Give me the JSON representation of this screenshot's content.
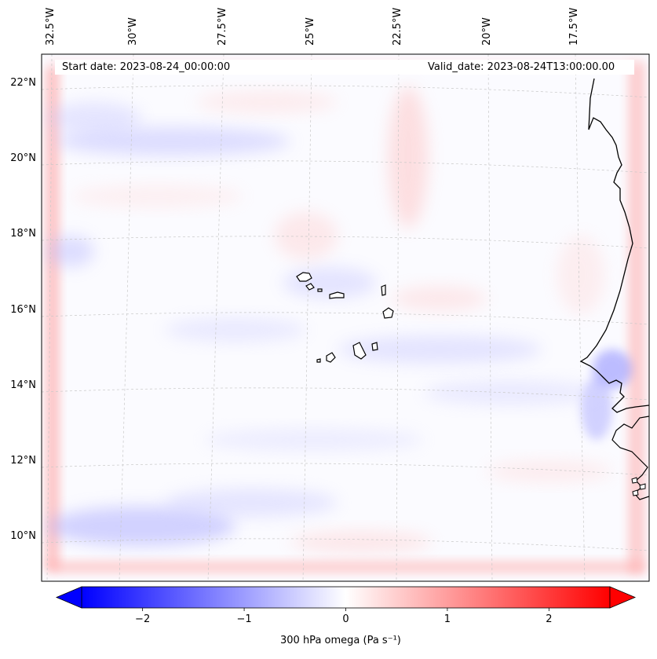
{
  "map": {
    "start_date_label": "Start date: 2023-08-24_00:00:00",
    "valid_date_label": "Valid_date: 2023-08-24T13:00:00.00",
    "lon_labels": [
      "32.5°W",
      "30°W",
      "27.5°W",
      "25°W",
      "22.5°W",
      "20°W",
      "17.5°W"
    ],
    "lat_labels": [
      "22°N",
      "20°N",
      "18°N",
      "16°N",
      "14°N",
      "12°N",
      "10°N"
    ],
    "variable": "300 hPa omega",
    "units": "Pa s⁻¹"
  },
  "colorbar": {
    "label": "300 hPa omega (Pa s⁻¹)",
    "ticks": [
      "−2",
      "−1",
      "0",
      "1",
      "2"
    ],
    "tick_values": [
      -2,
      -1,
      0,
      1,
      2
    ],
    "min": -2.6,
    "max": 2.6,
    "low_color": "#0000ff",
    "high_color": "#ff0000"
  },
  "colors": {
    "coastline": "#000000",
    "gridline": "#c8c8c8"
  }
}
